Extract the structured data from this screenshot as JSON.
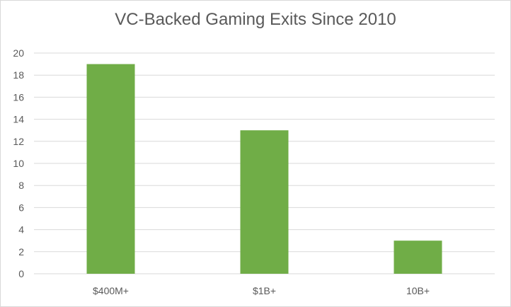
{
  "chart_data": {
    "type": "bar",
    "title": "VC-Backed Gaming Exits Since 2010",
    "xlabel": "",
    "ylabel": "",
    "categories": [
      "$400M+",
      "$1B+",
      "10B+"
    ],
    "values": [
      19,
      13,
      3
    ],
    "ylim": [
      0,
      20
    ],
    "yticks": [
      0,
      2,
      4,
      6,
      8,
      10,
      12,
      14,
      16,
      18,
      20
    ],
    "grid": true,
    "legend": "none",
    "bar_color": "#70ad47",
    "grid_color": "#d9d9d9"
  }
}
